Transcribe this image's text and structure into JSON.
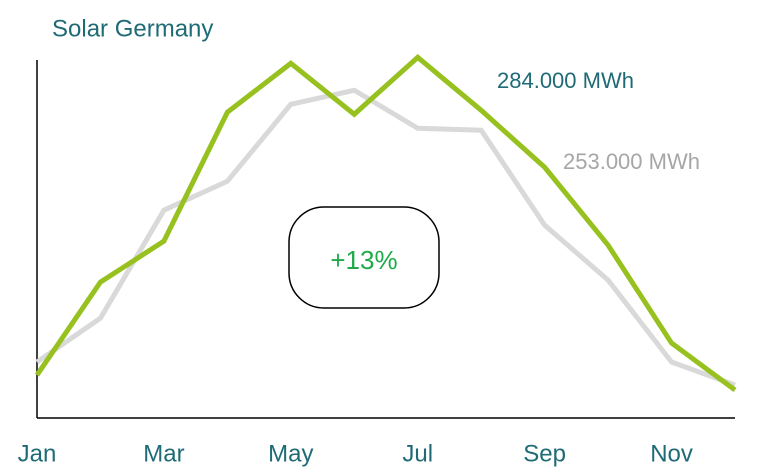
{
  "chart_data": {
    "type": "line",
    "title": "Solar Germany",
    "categories": [
      "Jan",
      null,
      "Mar",
      null,
      "May",
      null,
      "Jul",
      null,
      "Sep",
      null,
      "Nov",
      null
    ],
    "series": [
      {
        "name": "284.000 MWh",
        "color": "#97c11f",
        "values": [
          4850,
          15340,
          19970,
          34520,
          40040,
          34290,
          40720,
          34740,
          28310,
          19510,
          8460,
          3160
        ]
      },
      {
        "name": "253.000 MWh",
        "color": "#d9d9d9",
        "label_color": "#a6a6a6",
        "values": [
          6320,
          11280,
          23460,
          26730,
          35420,
          37000,
          32710,
          32490,
          21770,
          15570,
          6320,
          3720
        ]
      }
    ],
    "annotation": "+13%",
    "ylim": [
      0,
      42000
    ]
  }
}
